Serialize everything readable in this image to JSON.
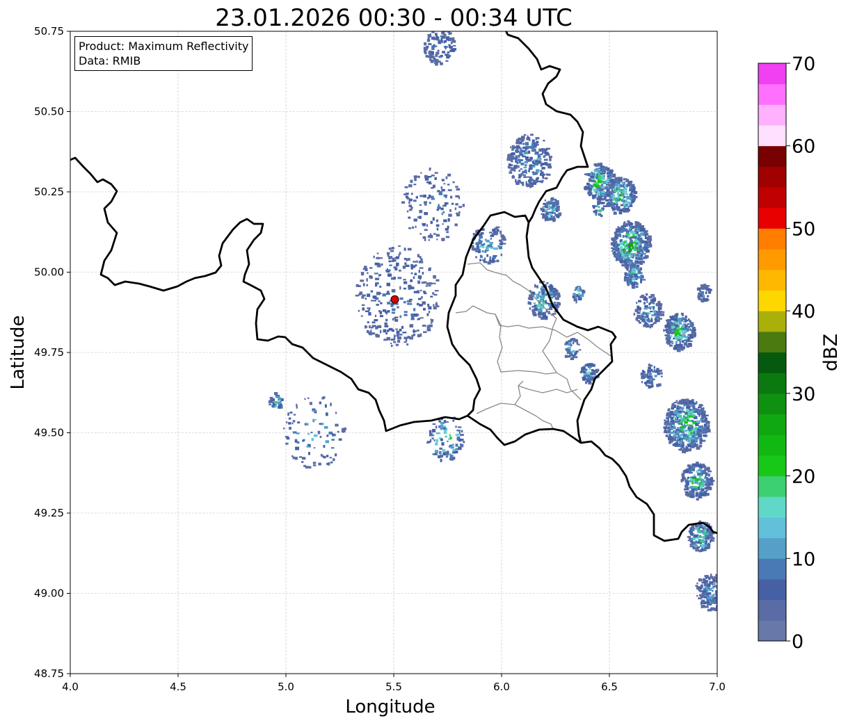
{
  "title": "23.01.2026 00:30 - 00:34 UTC",
  "legend": {
    "product": "Product: Maximum Reflectivity",
    "data": "Data: RMIB"
  },
  "chart_data": {
    "type": "heatmap",
    "title": "23.01.2026 00:30 - 00:34 UTC",
    "xlabel": "Longitude",
    "ylabel": "Latitude",
    "xlim": [
      4.0,
      7.0
    ],
    "ylim": [
      48.75,
      50.75
    ],
    "xticks": [
      "4.0",
      "4.5",
      "5.0",
      "5.5",
      "6.0",
      "6.5",
      "7.0"
    ],
    "yticks": [
      "48.75",
      "49.00",
      "49.25",
      "49.50",
      "49.75",
      "50.00",
      "50.25",
      "50.50",
      "50.75"
    ],
    "grid": true,
    "radar_site": {
      "lon": 5.505,
      "lat": 49.915,
      "color": "#e00000"
    },
    "colorbar": {
      "label": "dBZ",
      "range": [
        0,
        70
      ],
      "step": 2.5,
      "ticks": [
        "0",
        "10",
        "20",
        "30",
        "40",
        "50",
        "60",
        "70"
      ],
      "colors": [
        "#6878a8",
        "#5a6ca5",
        "#4660a5",
        "#4a7ab5",
        "#55a0c8",
        "#62c0da",
        "#60d8c8",
        "#3cd070",
        "#18c818",
        "#12b812",
        "#10a810",
        "#0e9010",
        "#0a7a10",
        "#065a10",
        "#4a7a10",
        "#aab00a",
        "#ffd700",
        "#ffb800",
        "#ff9a00",
        "#ff7e00",
        "#e80000",
        "#c00000",
        "#a00000",
        "#780000",
        "#ffe0ff",
        "#ffb0ff",
        "#ff70ff",
        "#f040f0"
      ]
    }
  }
}
